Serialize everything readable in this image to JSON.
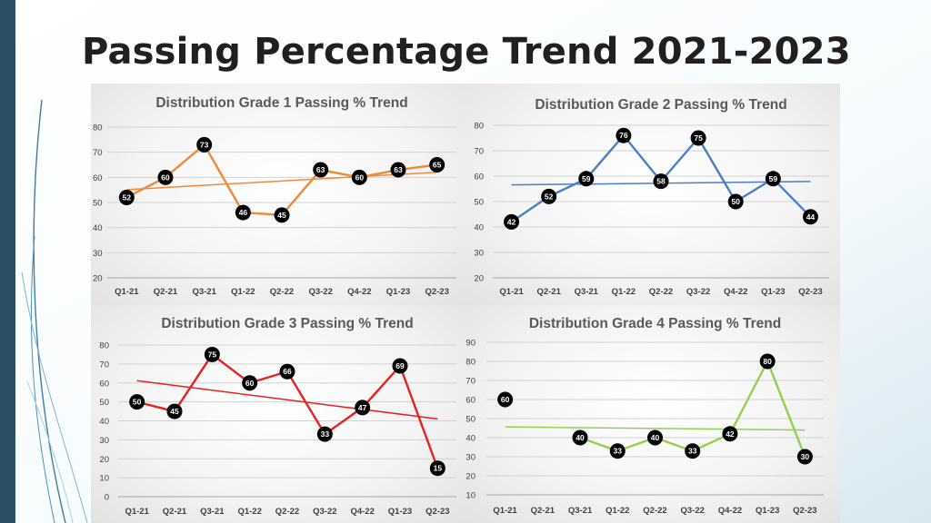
{
  "slide": {
    "title": "Passing Percentage Trend 2021-2023"
  },
  "theme": {
    "left_bar_color": "#2c4f66",
    "accent_line_color": "#3a7ea8",
    "marker_color": "#000000"
  },
  "chart_data": [
    {
      "type": "line",
      "title": "Distribution Grade 1 Passing % Trend",
      "categories": [
        "Q1-21",
        "Q2-21",
        "Q3-21",
        "Q1-22",
        "Q2-22",
        "Q3-22",
        "Q4-22",
        "Q1-23",
        "Q2-23"
      ],
      "values": [
        52,
        60,
        73,
        46,
        45,
        63,
        60,
        63,
        65
      ],
      "data_labels": true,
      "trendline": true,
      "ylim": [
        20,
        80
      ],
      "yticks": [
        20,
        30,
        40,
        50,
        60,
        70,
        80
      ],
      "grid": true,
      "color": "#ed8b3b",
      "legend": "none"
    },
    {
      "type": "line",
      "title": "Distribution Grade 2 Passing % Trend",
      "categories": [
        "Q1-21",
        "Q2-21",
        "Q3-21",
        "Q1-22",
        "Q2-22",
        "Q3-22",
        "Q4-22",
        "Q1-23",
        "Q2-23"
      ],
      "values": [
        42,
        52,
        59,
        76,
        58,
        75,
        50,
        59,
        44
      ],
      "data_labels": true,
      "trendline": true,
      "ylim": [
        20,
        80
      ],
      "yticks": [
        20,
        30,
        40,
        50,
        60,
        70,
        80
      ],
      "grid": true,
      "color": "#4a7ec8",
      "legend": "none"
    },
    {
      "type": "line",
      "title": "Distribution Grade 3 Passing % Trend",
      "categories": [
        "Q1-21",
        "Q2-21",
        "Q3-21",
        "Q1-22",
        "Q2-22",
        "Q3-22",
        "Q4-22",
        "Q1-23",
        "Q2-23"
      ],
      "values": [
        50,
        45,
        75,
        60,
        66,
        33,
        47,
        69,
        15
      ],
      "data_labels": true,
      "trendline": true,
      "ylim": [
        0,
        80
      ],
      "yticks": [
        0,
        10,
        20,
        30,
        40,
        50,
        60,
        70,
        80
      ],
      "grid": true,
      "color": "#e82020",
      "legend": "none"
    },
    {
      "type": "line",
      "title": "Distribution Grade 4 Passing % Trend",
      "categories": [
        "Q1-21",
        "Q2-21",
        "Q3-21",
        "Q1-22",
        "Q2-22",
        "Q3-22",
        "Q4-22",
        "Q1-23",
        "Q2-23"
      ],
      "values": [
        60,
        null,
        40,
        33,
        40,
        33,
        42,
        80,
        30
      ],
      "data_labels": true,
      "trendline": true,
      "ylim": [
        10,
        90
      ],
      "yticks": [
        10,
        20,
        30,
        40,
        50,
        60,
        70,
        80,
        90
      ],
      "grid": true,
      "color": "#92d050",
      "legend": "none"
    }
  ]
}
